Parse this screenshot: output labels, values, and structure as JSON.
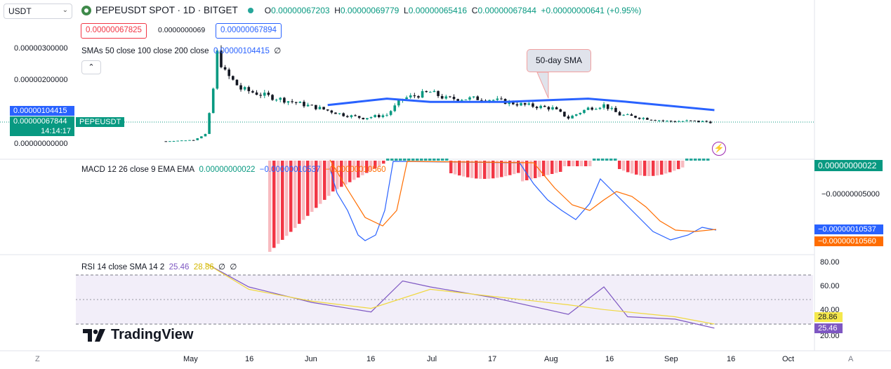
{
  "header": {
    "currency": "USDT",
    "title": "PEPEUSDT SPOT · 1D · BITGET",
    "open_label": "O",
    "open": "0.00000067203",
    "high_label": "H",
    "high": "0.00000069779",
    "low_label": "L",
    "low": "0.00000065416",
    "close_label": "C",
    "close": "0.00000067844",
    "change": "+0.00000000641 (+0.95%)"
  },
  "trade": {
    "sell": "0.00000067825",
    "spread": "0.0000000069",
    "buy": "0.00000067894"
  },
  "indicators": {
    "sma": {
      "label": "SMAs 50 close 100 close 200 close",
      "value": "0.00000104415",
      "extra": "∅",
      "color": "#2962ff"
    },
    "macd": {
      "label": "MACD 12 26 close 9 EMA EMA",
      "hist": "0.00000000022",
      "macd": "−0.00000010537",
      "signal": "−0.00000010560"
    },
    "rsi": {
      "label": "RSI 14 close SMA 14 2",
      "rsi": "25.46",
      "sma": "28.86",
      "extra1": "∅",
      "extra2": "∅"
    }
  },
  "price_axis": {
    "ticks": [
      "0.00000300000",
      "0.00000200000",
      "0.00000000000"
    ],
    "sma_tag": "0.00000104415",
    "last_tag": "0.00000067844",
    "countdown": "14:14:17",
    "symbol_tag": "PEPEUSDT"
  },
  "macd_axis": {
    "ticks": [
      "−0.00000005000"
    ],
    "hist_tag": "0.00000000022",
    "macd_tag": "−0.00000010537",
    "signal_tag": "−0.00000010560"
  },
  "rsi_axis": {
    "ticks": [
      "80.00",
      "60.00",
      "40.00",
      "20.00"
    ],
    "sma_tag": "28.86",
    "rsi_tag": "25.46"
  },
  "time_axis": [
    "May",
    "16",
    "Jun",
    "16",
    "Jul",
    "17",
    "Aug",
    "16",
    "Sep",
    "16",
    "Oct"
  ],
  "corner_left": "Z",
  "corner_right": "A",
  "callout": "50-day SMA",
  "brand": "TradingView",
  "collapse_icon": "chevron-up-icon",
  "colors": {
    "up": "#089981",
    "down": "#131722",
    "sma": "#2962ff",
    "macd": "#2962ff",
    "signal": "#ff6d00",
    "rsi": "#7e57c2",
    "rsi_sma": "#f0d840",
    "hist_neg_strong": "#f23645",
    "hist_neg_weak": "#f8bbc0",
    "hist_pos": "#26a69a"
  },
  "chart_data": [
    {
      "type": "candlestick",
      "title": "PEPEUSDT SPOT · 1D · BITGET",
      "x": [
        "Apr 26",
        "May 2",
        "May 5",
        "May 6",
        "May 7",
        "May 8",
        "May 10",
        "May 14",
        "May 20",
        "May 27",
        "Jun 3",
        "Jun 9",
        "Jun 14",
        "Jun 20",
        "Jun 24",
        "Jul 1",
        "Jul 5",
        "Jul 10",
        "Jul 15",
        "Jul 20",
        "Jul 25",
        "Aug 1",
        "Aug 5",
        "Aug 10",
        "Aug 14",
        "Aug 18",
        "Aug 24",
        "Aug 30",
        "Sep 5",
        "Sep 11"
      ],
      "close": [
        8e-08,
        1.2e-07,
        3e-07,
        9e-07,
        1.7e-06,
        2.8e-06,
        2.2e-06,
        1.7e-06,
        1.5e-06,
        1.3e-06,
        1.1e-06,
        9e-07,
        8e-07,
        9e-07,
        1.4e-06,
        1.6e-06,
        1.4e-06,
        1.4e-06,
        1.4e-06,
        1.3e-06,
        1.2e-06,
        1.1e-06,
        8e-07,
        1.1e-06,
        1.2e-06,
        9e-07,
        8e-07,
        7e-07,
        7e-07,
        6.7844e-07
      ],
      "ylim": [
        0,
        3.5e-06
      ]
    },
    {
      "type": "line",
      "series": [
        {
          "name": "SMAs 50 close 100 close 200 close",
          "x": [
            "Jun 5",
            "Jun 20",
            "Jul 1",
            "Jul 20",
            "Aug 10",
            "Aug 20",
            "Sep 11"
          ],
          "values": [
            1.2e-06,
            1.4e-06,
            1.3e-06,
            1.3e-06,
            1.4e-06,
            1.3e-06,
            1.04415e-06
          ]
        }
      ]
    },
    {
      "type": "line",
      "series": [
        {
          "name": "RSI",
          "x": [
            "May 5",
            "May 16",
            "Jun 1",
            "Jun 16",
            "Jun 24",
            "Jul 1",
            "Jul 17",
            "Aug 5",
            "Aug 14",
            "Aug 20",
            "Sep 1",
            "Sep 11"
          ],
          "values": [
            80,
            60,
            47,
            39,
            65,
            60,
            51,
            37,
            60,
            35,
            33,
            25.46
          ]
        },
        {
          "name": "SMA",
          "x": [
            "May 5",
            "May 16",
            "Jun 1",
            "Jun 16",
            "Jul 1",
            "Jul 17",
            "Aug 5",
            "Aug 14",
            "Sep 1",
            "Sep 11"
          ],
          "values": [
            80,
            58,
            48,
            42,
            58,
            52,
            45,
            41,
            35,
            28.86
          ]
        }
      ],
      "ylim": [
        15,
        85
      ]
    }
  ]
}
